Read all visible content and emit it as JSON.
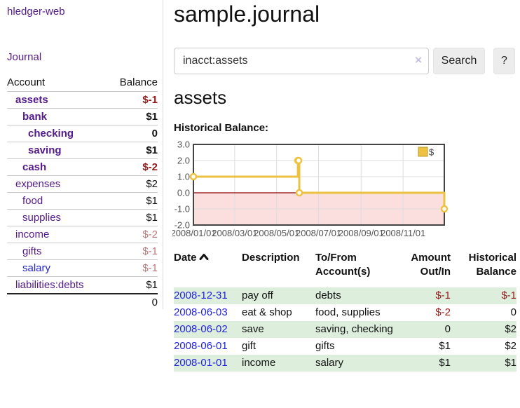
{
  "app": {
    "title": "hledger-web"
  },
  "sidebar": {
    "journal_link": "Journal",
    "header": {
      "account": "Account",
      "balance": "Balance"
    },
    "accounts": [
      {
        "name": "assets",
        "balance": "$-1"
      },
      {
        "name": "bank",
        "balance": "$1"
      },
      {
        "name": "checking",
        "balance": "0"
      },
      {
        "name": "saving",
        "balance": "$1"
      },
      {
        "name": "cash",
        "balance": "$-2"
      },
      {
        "name": "expenses",
        "balance": "$2"
      },
      {
        "name": "food",
        "balance": "$1"
      },
      {
        "name": "supplies",
        "balance": "$1"
      },
      {
        "name": "income",
        "balance": "$-2"
      },
      {
        "name": "gifts",
        "balance": "$-1"
      },
      {
        "name": "salary",
        "balance": "$-1"
      },
      {
        "name": "liabilities:debts",
        "balance": "$1"
      }
    ],
    "total": "0"
  },
  "main": {
    "title": "sample.journal",
    "search": {
      "value": "inacct:assets",
      "clear_icon": "×",
      "button_label": "Search",
      "help_label": "?"
    },
    "account_heading": "assets",
    "chart_label": "Historical Balance:"
  },
  "chart_data": {
    "type": "line",
    "step": true,
    "title": "Historical Balance",
    "series": [
      {
        "name": "$",
        "points": [
          {
            "date": "2008-01-01",
            "value": 1
          },
          {
            "date": "2008-06-01",
            "value": 2
          },
          {
            "date": "2008-06-02",
            "value": 2
          },
          {
            "date": "2008-06-03",
            "value": 0
          },
          {
            "date": "2008-12-31",
            "value": -1
          }
        ]
      }
    ],
    "x_range": [
      "2008-01-01",
      "2008-12-31"
    ],
    "ylim": [
      -2,
      3
    ],
    "y_ticks": [
      {
        "label": "3.0",
        "value": 3
      },
      {
        "label": "2.0",
        "value": 2
      },
      {
        "label": "1.0",
        "value": 1
      },
      {
        "label": "0.0",
        "value": 0
      },
      {
        "label": "-1.0",
        "value": -1
      },
      {
        "label": "-2.0",
        "value": -2
      }
    ],
    "x_ticks": [
      {
        "label": "2008/01/01",
        "date": "2008-01-01"
      },
      {
        "label": "2008/03/01",
        "date": "2008-03-01"
      },
      {
        "label": "2008/05/01",
        "date": "2008-05-01"
      },
      {
        "label": "2008/07/01",
        "date": "2008-07-01"
      },
      {
        "label": "2008/09/01",
        "date": "2008-09-01"
      },
      {
        "label": "2008/11/01",
        "date": "2008-11-01"
      }
    ],
    "legend_position": "top-right",
    "grid": true,
    "colors": {
      "line": "#EDC240",
      "line_border": "#B89B2E",
      "marker_fill": "#FFFFFF",
      "zero_line": "#8B0000",
      "negative_fill": "#FBDFDF",
      "grid": "#DDDDDD",
      "border": "#444444",
      "tick_text": "#545454"
    }
  },
  "register": {
    "headers": {
      "date": "Date",
      "description": "Description",
      "accounts": "To/From Account(s)",
      "amount": "Amount Out/In",
      "balance": "Historical Balance"
    },
    "rows": [
      {
        "date": "2008-12-31",
        "description": "pay off",
        "accounts": "debts",
        "amount": "$-1",
        "balance": "$-1"
      },
      {
        "date": "2008-06-03",
        "description": "eat & shop",
        "accounts": "food, supplies",
        "amount": "$-2",
        "balance": "0"
      },
      {
        "date": "2008-06-02",
        "description": "save",
        "accounts": "saving, checking",
        "amount": "0",
        "balance": "$2"
      },
      {
        "date": "2008-06-01",
        "description": "gift",
        "accounts": "gifts",
        "amount": "$1",
        "balance": "$2"
      },
      {
        "date": "2008-01-01",
        "description": "income",
        "accounts": "salary",
        "amount": "$1",
        "balance": "$1"
      }
    ]
  }
}
